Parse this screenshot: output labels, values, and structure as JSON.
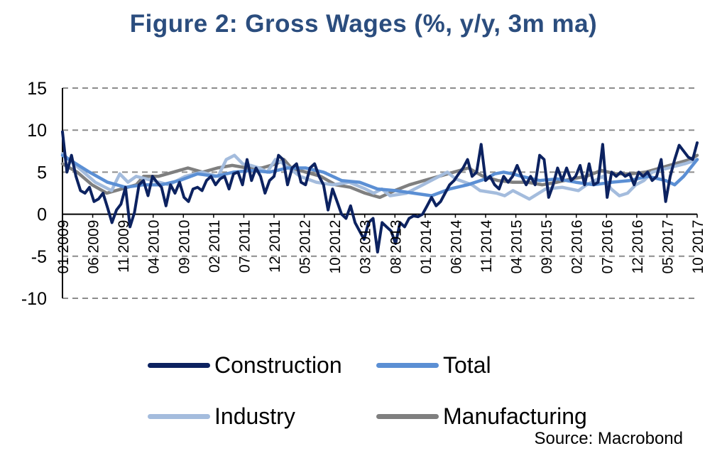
{
  "chart_data": {
    "type": "line",
    "title": "Figure 2: Gross Wages (%, y/y, 3m ma)",
    "source": "Source: Macrobond",
    "x_tick_labels": [
      "01 2009",
      "06 2009",
      "11 2009",
      "04 2010",
      "09 2010",
      "02 2011",
      "07 2011",
      "12 2011",
      "05 2012",
      "10 2012",
      "03 2013",
      "08 2013",
      "01 2014",
      "06 2014",
      "11 2014",
      "04 2015",
      "09 2015",
      "02 2016",
      "07 2016",
      "12 2016",
      "05 2017",
      "10 2017"
    ],
    "ylim": [
      -10,
      15
    ],
    "yticks": [
      -10,
      -5,
      0,
      5,
      10,
      15
    ],
    "grid": true,
    "legend_position": "bottom",
    "series": [
      {
        "name": "Construction",
        "color": "#0c2260",
        "anchors": [
          [
            0,
            9.8
          ],
          [
            1,
            5.0
          ],
          [
            2,
            7.0
          ],
          [
            3,
            4.5
          ],
          [
            4,
            2.8
          ],
          [
            5,
            2.5
          ],
          [
            6,
            3.2
          ],
          [
            7,
            1.5
          ],
          [
            8,
            1.8
          ],
          [
            9,
            2.5
          ],
          [
            10,
            0.8
          ],
          [
            11,
            -1.0
          ],
          [
            12,
            0.5
          ],
          [
            13,
            1.2
          ],
          [
            14,
            3.2
          ],
          [
            15,
            -1.5
          ],
          [
            16,
            0.2
          ],
          [
            17,
            3.5
          ],
          [
            18,
            4.0
          ],
          [
            19,
            2.2
          ],
          [
            20,
            4.5
          ],
          [
            21,
            3.8
          ],
          [
            22,
            3.2
          ],
          [
            23,
            1.0
          ],
          [
            24,
            3.5
          ],
          [
            25,
            2.5
          ],
          [
            26,
            3.8
          ],
          [
            27,
            2.0
          ],
          [
            28,
            1.5
          ],
          [
            29,
            3.0
          ],
          [
            30,
            3.2
          ],
          [
            31,
            2.8
          ],
          [
            32,
            4.0
          ],
          [
            33,
            4.5
          ],
          [
            34,
            3.5
          ],
          [
            35,
            4.2
          ],
          [
            36,
            4.5
          ],
          [
            37,
            3.0
          ],
          [
            38,
            4.8
          ],
          [
            39,
            5.0
          ],
          [
            40,
            3.5
          ],
          [
            41,
            6.5
          ],
          [
            42,
            4.0
          ],
          [
            43,
            5.5
          ],
          [
            44,
            4.5
          ],
          [
            45,
            2.5
          ],
          [
            46,
            4.0
          ],
          [
            47,
            4.5
          ],
          [
            48,
            7.0
          ],
          [
            49,
            6.5
          ],
          [
            50,
            3.5
          ],
          [
            51,
            5.5
          ],
          [
            52,
            6.0
          ],
          [
            53,
            3.8
          ],
          [
            54,
            3.5
          ],
          [
            55,
            5.5
          ],
          [
            56,
            6.0
          ],
          [
            57,
            4.5
          ],
          [
            58,
            3.5
          ],
          [
            59,
            0.5
          ],
          [
            60,
            3.0
          ],
          [
            61,
            1.5
          ],
          [
            62,
            0.0
          ],
          [
            63,
            -0.5
          ],
          [
            64,
            1.0
          ],
          [
            65,
            -1.0
          ],
          [
            66,
            -2.0
          ],
          [
            67,
            -3.0
          ],
          [
            68,
            -1.0
          ],
          [
            69,
            -0.5
          ],
          [
            70,
            -4.5
          ],
          [
            71,
            -1.0
          ],
          [
            72,
            -1.5
          ],
          [
            73,
            -2.0
          ],
          [
            74,
            -3.5
          ],
          [
            75,
            -1.0
          ],
          [
            76,
            -1.5
          ],
          [
            77,
            -0.5
          ],
          [
            78,
            -0.2
          ],
          [
            79,
            -0.3
          ],
          [
            80,
            0.0
          ],
          [
            81,
            1.0
          ],
          [
            82,
            2.0
          ],
          [
            83,
            1.0
          ],
          [
            84,
            1.5
          ],
          [
            85,
            2.5
          ],
          [
            86,
            3.5
          ],
          [
            87,
            4.0
          ],
          [
            88,
            4.8
          ],
          [
            89,
            5.5
          ],
          [
            90,
            6.5
          ],
          [
            91,
            4.5
          ],
          [
            92,
            5.0
          ],
          [
            93,
            8.3
          ],
          [
            94,
            4.0
          ],
          [
            95,
            4.5
          ],
          [
            96,
            3.5
          ],
          [
            97,
            3.0
          ],
          [
            98,
            4.5
          ],
          [
            99,
            3.8
          ],
          [
            100,
            4.5
          ],
          [
            101,
            5.8
          ],
          [
            102,
            4.5
          ],
          [
            103,
            3.5
          ],
          [
            104,
            4.5
          ],
          [
            105,
            3.5
          ],
          [
            106,
            7.0
          ],
          [
            107,
            6.5
          ],
          [
            108,
            2.0
          ],
          [
            109,
            3.5
          ],
          [
            110,
            5.5
          ],
          [
            111,
            4.0
          ],
          [
            112,
            5.5
          ],
          [
            113,
            4.0
          ],
          [
            114,
            4.5
          ],
          [
            115,
            5.8
          ],
          [
            116,
            3.5
          ],
          [
            117,
            6.0
          ],
          [
            118,
            3.5
          ],
          [
            119,
            3.8
          ],
          [
            120,
            8.3
          ],
          [
            121,
            2.0
          ],
          [
            122,
            5.0
          ],
          [
            123,
            4.5
          ],
          [
            124,
            5.0
          ],
          [
            125,
            4.5
          ],
          [
            126,
            4.8
          ],
          [
            127,
            3.5
          ],
          [
            128,
            5.0
          ],
          [
            129,
            4.5
          ],
          [
            130,
            5.0
          ],
          [
            131,
            4.0
          ],
          [
            132,
            4.5
          ],
          [
            133,
            6.5
          ],
          [
            134,
            1.5
          ],
          [
            135,
            4.5
          ],
          [
            136,
            6.5
          ],
          [
            137,
            8.2
          ],
          [
            138,
            7.5
          ],
          [
            139,
            6.8
          ],
          [
            140,
            6.5
          ],
          [
            141,
            8.5
          ]
        ]
      },
      {
        "name": "Total",
        "color": "#5b8fd4",
        "anchors": [
          [
            0,
            7.0
          ],
          [
            6,
            5.0
          ],
          [
            10,
            3.8
          ],
          [
            14,
            3.2
          ],
          [
            18,
            3.5
          ],
          [
            22,
            3.5
          ],
          [
            26,
            4.0
          ],
          [
            30,
            4.8
          ],
          [
            34,
            4.5
          ],
          [
            38,
            5.0
          ],
          [
            42,
            5.2
          ],
          [
            46,
            5.0
          ],
          [
            50,
            5.5
          ],
          [
            54,
            5.5
          ],
          [
            58,
            5.0
          ],
          [
            62,
            4.0
          ],
          [
            66,
            3.8
          ],
          [
            70,
            3.0
          ],
          [
            74,
            2.8
          ],
          [
            78,
            2.5
          ],
          [
            82,
            2.2
          ],
          [
            86,
            3.0
          ],
          [
            90,
            3.5
          ],
          [
            94,
            4.2
          ],
          [
            96,
            4.8
          ],
          [
            98,
            5.0
          ],
          [
            100,
            4.8
          ],
          [
            102,
            4.5
          ],
          [
            106,
            4.0
          ],
          [
            110,
            4.2
          ],
          [
            114,
            3.8
          ],
          [
            118,
            3.5
          ],
          [
            122,
            3.8
          ],
          [
            126,
            4.0
          ],
          [
            130,
            4.5
          ],
          [
            134,
            4.0
          ],
          [
            136,
            3.5
          ],
          [
            138,
            4.5
          ],
          [
            141,
            6.5
          ]
        ]
      },
      {
        "name": "Industry",
        "color": "#a4bcdd",
        "anchors": [
          [
            0,
            7.2
          ],
          [
            4,
            5.5
          ],
          [
            8,
            3.8
          ],
          [
            12,
            2.8
          ],
          [
            14,
            4.8
          ],
          [
            16,
            3.8
          ],
          [
            18,
            4.5
          ],
          [
            22,
            4.0
          ],
          [
            26,
            3.5
          ],
          [
            30,
            4.5
          ],
          [
            34,
            5.0
          ],
          [
            38,
            4.5
          ],
          [
            40,
            6.5
          ],
          [
            42,
            7.0
          ],
          [
            44,
            6.0
          ],
          [
            46,
            5.8
          ],
          [
            48,
            5.5
          ],
          [
            50,
            5.0
          ],
          [
            52,
            6.5
          ],
          [
            54,
            6.0
          ],
          [
            58,
            4.5
          ],
          [
            62,
            3.8
          ],
          [
            66,
            3.5
          ],
          [
            70,
            3.8
          ],
          [
            74,
            3.0
          ],
          [
            76,
            2.5
          ],
          [
            78,
            3.0
          ],
          [
            80,
            2.2
          ],
          [
            84,
            2.5
          ],
          [
            88,
            3.5
          ],
          [
            92,
            4.5
          ],
          [
            94,
            5.0
          ],
          [
            96,
            4.2
          ],
          [
            100,
            3.5
          ],
          [
            102,
            2.8
          ],
          [
            106,
            2.5
          ],
          [
            108,
            2.2
          ],
          [
            110,
            2.8
          ],
          [
            114,
            1.8
          ],
          [
            118,
            3.0
          ],
          [
            122,
            3.2
          ],
          [
            126,
            2.8
          ],
          [
            128,
            3.5
          ],
          [
            132,
            4.5
          ],
          [
            134,
            3.0
          ],
          [
            136,
            2.2
          ],
          [
            138,
            2.5
          ],
          [
            140,
            3.5
          ],
          [
            142,
            4.0
          ],
          [
            144,
            5.0
          ],
          [
            148,
            5.5
          ],
          [
            152,
            6.0
          ],
          [
            155,
            6.5
          ]
        ]
      },
      {
        "name": "Manufacturing",
        "color": "#7f7f7f",
        "anchors": [
          [
            0,
            6.0
          ],
          [
            4,
            5.0
          ],
          [
            8,
            3.5
          ],
          [
            12,
            2.5
          ],
          [
            16,
            3.0
          ],
          [
            20,
            3.5
          ],
          [
            22,
            4.5
          ],
          [
            26,
            4.5
          ],
          [
            30,
            5.0
          ],
          [
            34,
            5.5
          ],
          [
            38,
            5.0
          ],
          [
            42,
            5.5
          ],
          [
            46,
            5.8
          ],
          [
            50,
            5.5
          ],
          [
            54,
            5.5
          ],
          [
            58,
            6.0
          ],
          [
            60,
            6.5
          ],
          [
            62,
            5.5
          ],
          [
            66,
            5.0
          ],
          [
            70,
            4.5
          ],
          [
            74,
            3.5
          ],
          [
            78,
            3.2
          ],
          [
            82,
            2.5
          ],
          [
            86,
            2.0
          ],
          [
            90,
            2.8
          ],
          [
            94,
            3.5
          ],
          [
            98,
            4.0
          ],
          [
            102,
            4.5
          ],
          [
            106,
            5.0
          ],
          [
            110,
            5.5
          ],
          [
            114,
            4.5
          ],
          [
            118,
            4.0
          ],
          [
            122,
            3.8
          ],
          [
            126,
            3.8
          ],
          [
            130,
            3.5
          ],
          [
            134,
            3.8
          ],
          [
            138,
            4.2
          ],
          [
            142,
            4.5
          ],
          [
            146,
            5.2
          ],
          [
            150,
            4.8
          ],
          [
            154,
            4.8
          ],
          [
            158,
            5.0
          ],
          [
            162,
            5.5
          ],
          [
            166,
            6.0
          ],
          [
            170,
            6.5
          ],
          [
            172,
            7.0
          ]
        ]
      }
    ]
  }
}
